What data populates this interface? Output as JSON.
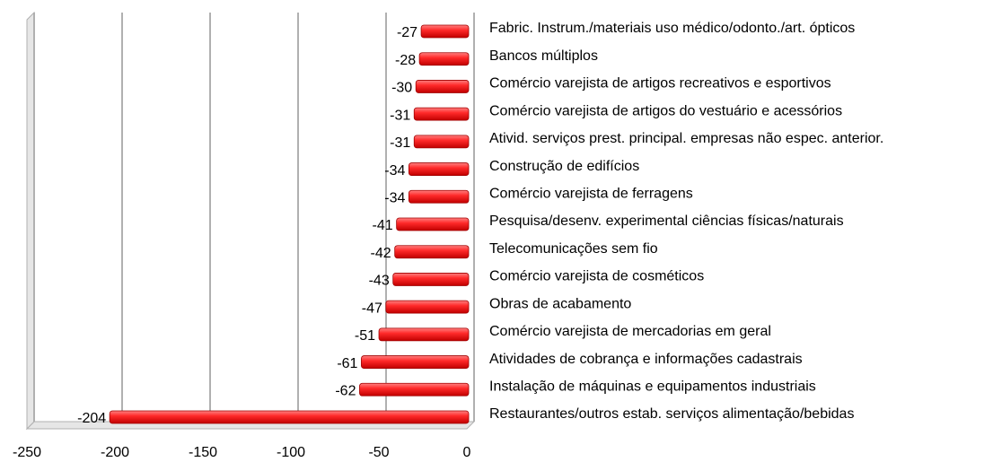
{
  "chart_data": {
    "type": "bar",
    "orientation": "horizontal",
    "categories": [
      "Fabric. Instrum./materiais uso médico/odonto./art. ópticos",
      "Bancos múltiplos",
      "Comércio varejista de artigos recreativos e esportivos",
      "Comércio varejista de artigos do vestuário e acessórios",
      "Ativid. serviços prest. principal. empresas não espec. anterior.",
      "Construção de edifícios",
      "Comércio varejista de ferragens",
      "Pesquisa/desenv. experimental ciências físicas/naturais",
      "Telecomunicações sem fio",
      "Comércio varejista de cosméticos",
      "Obras de acabamento",
      "Comércio varejista de mercadorias em geral",
      "Atividades de cobrança e informações cadastrais",
      "Instalação de máquinas e equipamentos industriais",
      "Restaurantes/outros estab. serviços alimentação/bebidas"
    ],
    "values": [
      -27,
      -28,
      -30,
      -31,
      -31,
      -34,
      -34,
      -41,
      -42,
      -43,
      -47,
      -51,
      -61,
      -62,
      -204
    ],
    "color": "#ff2a2a",
    "xlim": [
      -250,
      0
    ],
    "xticks": [
      -250,
      -200,
      -150,
      -100,
      -50,
      0
    ],
    "grid": true
  }
}
